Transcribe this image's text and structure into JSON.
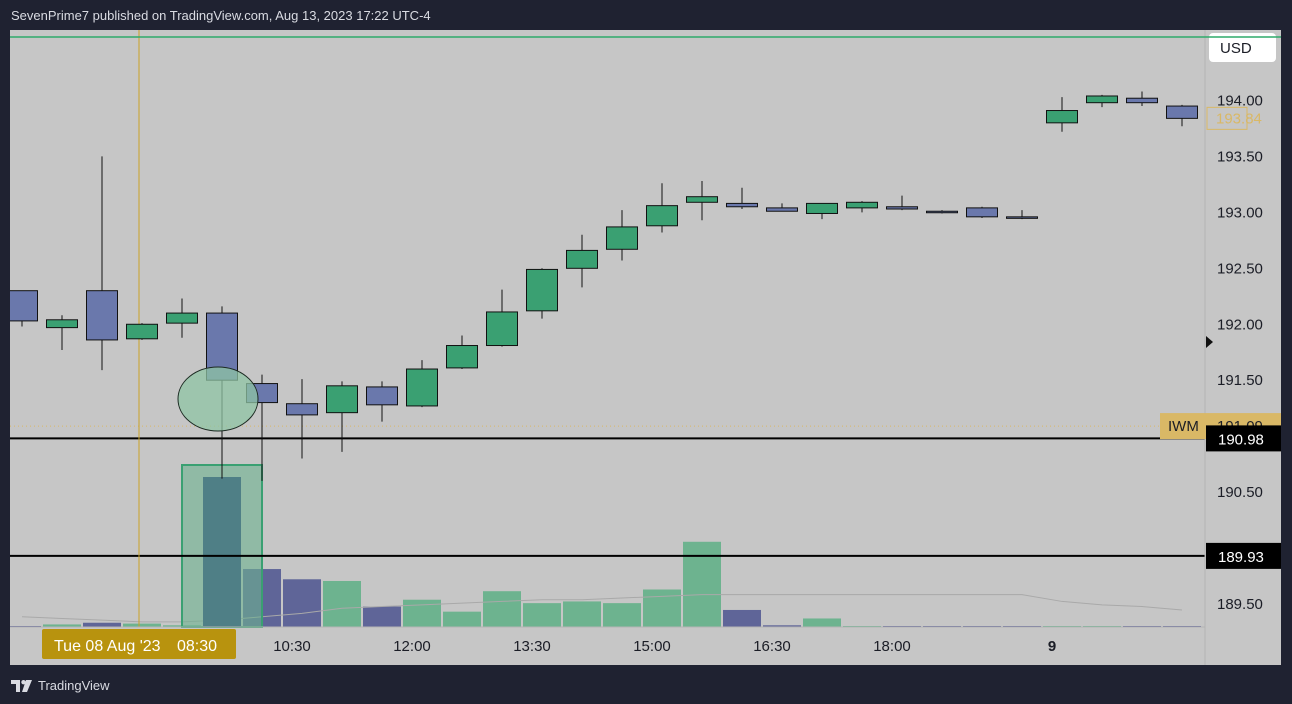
{
  "header": {
    "published_text": "SevenPrime7 published on TradingView.com, Aug 13, 2023 17:22 UTC-4"
  },
  "footer": {
    "brand": "TradingView",
    "logo_icon": "tradingview-logo-icon"
  },
  "colors": {
    "background": "#c6c6c6",
    "frame": "#1f2231",
    "up": "#3aa072",
    "down": "#6a78ac",
    "candle_border": "#111111",
    "vol_up": "#6db38f",
    "vol_down": "#5f6598",
    "crosshair": "#c9a227",
    "top_line": "#2faa6a",
    "last_price": "#d9b866"
  },
  "chart_data": {
    "type": "candlestick",
    "ticker": "IWM",
    "currency": "USD",
    "interval_minutes": 30,
    "ylim": [
      189.2,
      194.4
    ],
    "y_ticks": [
      "194.00",
      "193.50",
      "193.00",
      "192.50",
      "192.00",
      "191.50",
      "190.50",
      "189.50"
    ],
    "x_ticks": [
      {
        "label": "10:30",
        "bar": 7
      },
      {
        "label": "12:00",
        "bar": 10
      },
      {
        "label": "13:30",
        "bar": 13
      },
      {
        "label": "15:00",
        "bar": 16
      },
      {
        "label": "16:30",
        "bar": 19
      },
      {
        "label": "18:00",
        "bar": 22
      },
      {
        "label": "9",
        "bar": 26
      }
    ],
    "crosshair": {
      "bar": 3,
      "date_label": "Tue 08 Aug '23",
      "time_label": "08:30"
    },
    "price_labels": {
      "last_price": "193.84",
      "ticker_price": "191.09",
      "line_1": "190.98",
      "line_2": "189.93"
    },
    "horizontal_lines": [
      190.98,
      189.93
    ],
    "candles": [
      {
        "o": 192.3,
        "h": 192.3,
        "l": 191.98,
        "c": 192.03
      },
      {
        "o": 191.97,
        "h": 192.08,
        "l": 191.77,
        "c": 192.04
      },
      {
        "o": 192.3,
        "h": 193.5,
        "l": 191.59,
        "c": 191.86
      },
      {
        "o": 191.87,
        "h": 192.01,
        "l": 191.86,
        "c": 192.0
      },
      {
        "o": 192.01,
        "h": 192.23,
        "l": 191.88,
        "c": 192.1
      },
      {
        "o": 192.1,
        "h": 192.16,
        "l": 190.62,
        "c": 191.5
      },
      {
        "o": 191.47,
        "h": 191.55,
        "l": 190.6,
        "c": 191.3
      },
      {
        "o": 191.29,
        "h": 191.51,
        "l": 190.8,
        "c": 191.19
      },
      {
        "o": 191.21,
        "h": 191.49,
        "l": 190.86,
        "c": 191.45
      },
      {
        "o": 191.44,
        "h": 191.49,
        "l": 191.13,
        "c": 191.28
      },
      {
        "o": 191.27,
        "h": 191.68,
        "l": 191.26,
        "c": 191.6
      },
      {
        "o": 191.61,
        "h": 191.9,
        "l": 191.6,
        "c": 191.81
      },
      {
        "o": 191.81,
        "h": 192.31,
        "l": 191.8,
        "c": 192.11
      },
      {
        "o": 192.12,
        "h": 192.5,
        "l": 192.05,
        "c": 192.49
      },
      {
        "o": 192.5,
        "h": 192.8,
        "l": 192.33,
        "c": 192.66
      },
      {
        "o": 192.67,
        "h": 193.02,
        "l": 192.57,
        "c": 192.87
      },
      {
        "o": 192.88,
        "h": 193.26,
        "l": 192.82,
        "c": 193.06
      },
      {
        "o": 193.09,
        "h": 193.28,
        "l": 192.93,
        "c": 193.14
      },
      {
        "o": 193.08,
        "h": 193.22,
        "l": 193.03,
        "c": 193.05
      },
      {
        "o": 193.04,
        "h": 193.08,
        "l": 193.01,
        "c": 193.01
      },
      {
        "o": 192.99,
        "h": 193.07,
        "l": 192.94,
        "c": 193.08
      },
      {
        "o": 193.04,
        "h": 193.1,
        "l": 193.0,
        "c": 193.09
      },
      {
        "o": 193.05,
        "h": 193.15,
        "l": 193.02,
        "c": 193.03
      },
      {
        "o": 193.01,
        "h": 193.02,
        "l": 192.99,
        "c": 193.0
      },
      {
        "o": 193.04,
        "h": 193.05,
        "l": 192.95,
        "c": 192.96
      },
      {
        "o": 192.96,
        "h": 193.02,
        "l": 192.94,
        "c": 192.95
      },
      {
        "o": 193.8,
        "h": 194.03,
        "l": 193.72,
        "c": 193.91
      },
      {
        "o": 193.98,
        "h": 194.05,
        "l": 193.94,
        "c": 194.04
      },
      {
        "o": 194.02,
        "h": 194.08,
        "l": 193.95,
        "c": 193.98
      },
      {
        "o": 193.95,
        "h": 193.96,
        "l": 193.77,
        "c": 193.84
      }
    ],
    "volume": [
      0.5,
      1.5,
      2.5,
      2,
      1,
      88,
      34,
      28,
      27,
      12,
      16,
      9,
      21,
      14,
      15,
      14,
      22,
      50,
      10,
      1,
      5,
      0.4,
      0.4,
      0.4,
      0.4,
      0.4,
      0.4,
      0.5,
      0.4,
      0.4
    ],
    "volume_ma": [
      6,
      5,
      4,
      3,
      3,
      4,
      6,
      8,
      11,
      12,
      13,
      14,
      15,
      16,
      16,
      17,
      18,
      19,
      19,
      19,
      19,
      19,
      19,
      19,
      19,
      19,
      15,
      13,
      12,
      10
    ]
  }
}
